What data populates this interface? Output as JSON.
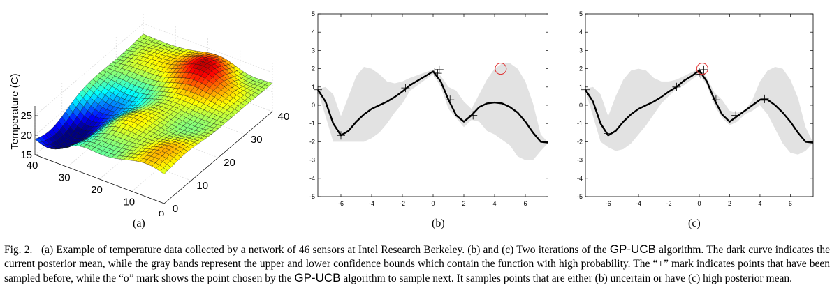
{
  "chart_data": [
    {
      "type": "surface",
      "panel_label": "(a)",
      "zlabel": "Temperature (C)",
      "z_ticks": [
        15,
        20,
        25
      ],
      "x_ticks": [
        0,
        10,
        20,
        30,
        40
      ],
      "y_ticks": [
        0,
        10,
        20,
        30,
        40
      ],
      "xlim": [
        0,
        40
      ],
      "ylim": [
        0,
        40
      ],
      "zlim": [
        15,
        27
      ],
      "colormap": "jet",
      "grid": true
    },
    {
      "type": "line",
      "panel_label": "(b)",
      "xlim": [
        -7.5,
        7.5
      ],
      "ylim": [
        -5,
        5
      ],
      "x_ticks": [
        -6,
        -4,
        -2,
        0,
        2,
        4,
        6
      ],
      "y_ticks": [
        -5,
        -4,
        -3,
        -2,
        -1,
        0,
        1,
        2,
        3,
        4,
        5
      ],
      "mean_x": [
        -7.5,
        -7,
        -6.5,
        -6,
        -5.5,
        -5,
        -4.5,
        -4,
        -3.5,
        -3,
        -2.5,
        -2,
        -1.5,
        -1,
        -0.5,
        0,
        0.5,
        1,
        1.5,
        2,
        2.5,
        3,
        3.5,
        4,
        4.5,
        5,
        5.5,
        6,
        6.5,
        7,
        7.5
      ],
      "mean_y": [
        0.85,
        0.2,
        -1.0,
        -1.65,
        -1.4,
        -0.9,
        -0.5,
        -0.2,
        0.0,
        0.2,
        0.45,
        0.75,
        1.1,
        1.35,
        1.6,
        1.85,
        1.3,
        0.3,
        -0.55,
        -0.9,
        -0.55,
        -0.1,
        0.1,
        0.15,
        0.1,
        -0.1,
        -0.4,
        -0.9,
        -1.5,
        -2.0,
        -2.05
      ],
      "upper": [
        0.9,
        1.0,
        0.6,
        -0.6,
        0.5,
        1.6,
        2.1,
        2.0,
        1.7,
        1.3,
        1.2,
        1.3,
        1.5,
        1.65,
        1.8,
        1.95,
        1.6,
        1.0,
        0.8,
        0.2,
        -0.2,
        0.6,
        1.4,
        2.0,
        2.3,
        2.3,
        2.0,
        1.3,
        0.1,
        -1.6,
        -2.05
      ],
      "lower": [
        0.8,
        -0.6,
        -2.0,
        -2.0,
        -2.0,
        -2.0,
        -2.0,
        -1.8,
        -1.5,
        -1.0,
        -0.4,
        0.1,
        0.8,
        1.1,
        1.4,
        1.7,
        1.0,
        -0.2,
        -0.7,
        -1.2,
        -0.8,
        -0.9,
        -1.4,
        -1.6,
        -1.9,
        -2.2,
        -2.8,
        -3.0,
        -3.0,
        -2.5,
        -2.05
      ],
      "samples": [
        [
          -7.5,
          0.85
        ],
        [
          -6.0,
          -1.65
        ],
        [
          -1.8,
          0.95
        ],
        [
          0.1,
          1.8
        ],
        [
          0.3,
          1.75
        ],
        [
          0.4,
          1.95
        ],
        [
          1.1,
          0.3
        ],
        [
          2.6,
          -0.55
        ]
      ],
      "next_point": [
        4.4,
        2.0
      ]
    },
    {
      "type": "line",
      "panel_label": "(c)",
      "xlim": [
        -7.5,
        7.5
      ],
      "ylim": [
        -5,
        5
      ],
      "x_ticks": [
        -6,
        -4,
        -2,
        0,
        2,
        4,
        6
      ],
      "y_ticks": [
        -5,
        -4,
        -3,
        -2,
        -1,
        0,
        1,
        2,
        3,
        4,
        5
      ],
      "mean_x": [
        -7.5,
        -7,
        -6.5,
        -6,
        -5.5,
        -5,
        -4.5,
        -4,
        -3.5,
        -3,
        -2.5,
        -2,
        -1.5,
        -1,
        -0.5,
        0,
        0.5,
        1,
        1.5,
        2,
        2.5,
        3,
        3.5,
        4,
        4.5,
        5,
        5.5,
        6,
        6.5,
        7,
        7.5
      ],
      "mean_y": [
        0.85,
        0.2,
        -1.0,
        -1.65,
        -1.4,
        -0.9,
        -0.5,
        -0.2,
        0.0,
        0.2,
        0.45,
        0.75,
        1.0,
        1.35,
        1.6,
        1.9,
        1.3,
        0.3,
        -0.5,
        -0.9,
        -0.6,
        -0.3,
        0.0,
        0.3,
        0.3,
        0.0,
        -0.4,
        -0.9,
        -1.5,
        -2.0,
        -2.05
      ],
      "upper": [
        0.9,
        1.0,
        0.6,
        -0.6,
        0.5,
        1.4,
        1.9,
        2.0,
        1.9,
        1.5,
        1.3,
        1.3,
        1.4,
        1.6,
        1.8,
        2.0,
        1.5,
        0.7,
        0.3,
        -0.3,
        -0.4,
        -0.3,
        0.3,
        1.3,
        1.9,
        2.1,
        2.0,
        1.4,
        0.4,
        -1.2,
        -2.05
      ],
      "lower": [
        0.8,
        -0.6,
        -2.0,
        -2.3,
        -2.5,
        -2.4,
        -2.1,
        -1.6,
        -1.1,
        -0.5,
        0.1,
        0.5,
        0.9,
        1.1,
        1.4,
        1.7,
        1.1,
        0.0,
        -0.7,
        -1.1,
        -0.9,
        -0.5,
        -0.3,
        0.0,
        -0.5,
        -1.3,
        -2.1,
        -2.6,
        -2.7,
        -2.5,
        -2.05
      ],
      "samples": [
        [
          -7.5,
          0.85
        ],
        [
          -6.0,
          -1.55
        ],
        [
          -1.5,
          1.0
        ],
        [
          0.0,
          1.8
        ],
        [
          0.1,
          1.7
        ],
        [
          0.3,
          1.95
        ],
        [
          1.1,
          0.3
        ],
        [
          2.4,
          -0.55
        ],
        [
          4.3,
          0.35
        ]
      ],
      "next_point": [
        0.2,
        2.0
      ]
    }
  ],
  "caption": {
    "fig_label": "Fig. 2.",
    "part1": "(a) Example of temperature data collected by a network of 46 sensors at Intel Research Berkeley. (b) and (c) Two iterations of the",
    "algo_name": "GP-UCB",
    "part2": "algorithm. The dark curve indicates the current posterior mean, while the gray bands represent the upper and lower confidence bounds which contain the function with high probability. The “+” mark indicates points that have been sampled before, while the “o” mark shows the point chosen by the",
    "part3": "algorithm to sample next. It samples points that are either (b) uncertain or have (c) high posterior mean."
  }
}
